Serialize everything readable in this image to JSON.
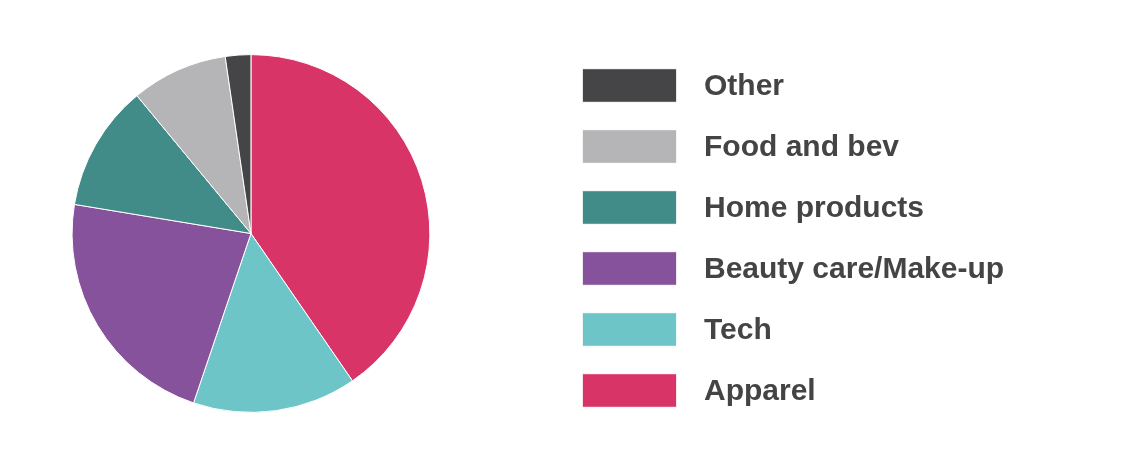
{
  "chart_data": {
    "type": "pie",
    "categories": [
      "Apparel",
      "Tech",
      "Beauty care/Make-up",
      "Home products",
      "Food and bev",
      "Other"
    ],
    "values": [
      40.4,
      14.8,
      22.4,
      11.4,
      8.7,
      2.3
    ],
    "colors": [
      "#d93467",
      "#6ec5c8",
      "#86529c",
      "#418b89",
      "#b5b5b7",
      "#454547"
    ],
    "legend": "right"
  }
}
